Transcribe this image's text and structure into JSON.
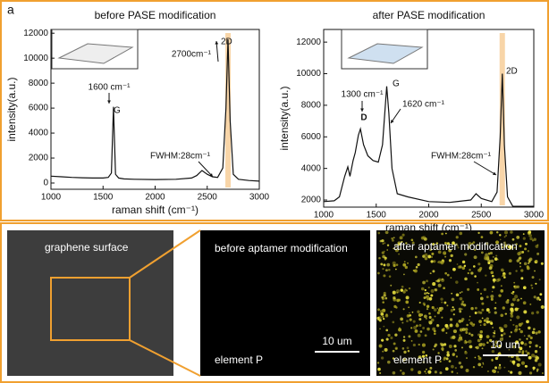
{
  "panel_labels": [
    "a",
    "b"
  ],
  "chart_data": [
    {
      "type": "line",
      "title": "before PASE modification",
      "x_label": "raman shift (cm⁻¹)",
      "y_label": "intensity(a.u.)",
      "x": [
        1000,
        1100,
        1200,
        1300,
        1400,
        1500,
        1550,
        1580,
        1600,
        1620,
        1650,
        1700,
        1800,
        2000,
        2200,
        2350,
        2400,
        2450,
        2500,
        2550,
        2600,
        2650,
        2680,
        2700,
        2720,
        2750,
        2800,
        2900,
        3000
      ],
      "values": [
        550,
        500,
        450,
        420,
        400,
        400,
        450,
        800,
        6100,
        700,
        400,
        330,
        300,
        280,
        300,
        400,
        600,
        1000,
        700,
        500,
        450,
        1200,
        6000,
        11500,
        5000,
        700,
        300,
        200,
        150
      ],
      "color": "#111111",
      "xlim": [
        1000,
        3000
      ],
      "ylim": [
        -500,
        12300
      ],
      "xticks": [
        1000,
        1500,
        2000,
        2500,
        3000
      ],
      "yticks": [
        0,
        2000,
        4000,
        6000,
        8000,
        10000,
        12000
      ],
      "highlight_x": 2700,
      "annotations": [
        "1600 cm⁻¹",
        "G",
        "2700cm⁻¹",
        "2D",
        "FWHM:28cm⁻¹"
      ]
    },
    {
      "type": "line",
      "title": "after PASE modification",
      "x_label": "raman shift (cm⁻¹)",
      "y_label": "intensity(a.u.)",
      "x": [
        1000,
        1100,
        1150,
        1200,
        1230,
        1250,
        1280,
        1300,
        1330,
        1350,
        1380,
        1420,
        1470,
        1520,
        1560,
        1600,
        1620,
        1650,
        1700,
        1800,
        2000,
        2200,
        2400,
        2450,
        2500,
        2600,
        2650,
        2680,
        2700,
        2720,
        2750,
        2800,
        3000
      ],
      "values": [
        1900,
        1950,
        2200,
        3500,
        4100,
        3500,
        4500,
        5000,
        6100,
        6500,
        5500,
        4800,
        4500,
        4400,
        5500,
        9200,
        7500,
        4000,
        2400,
        2200,
        1900,
        1850,
        2000,
        2400,
        2100,
        1900,
        2500,
        6000,
        10000,
        5500,
        2200,
        1600,
        1600
      ],
      "color": "#111111",
      "xlim": [
        1000,
        3000
      ],
      "ylim": [
        1550,
        12800
      ],
      "xticks": [
        1000,
        1500,
        2000,
        2500,
        3000
      ],
      "yticks": [
        2000,
        4000,
        6000,
        8000,
        10000,
        12000
      ],
      "highlight_x": 2700,
      "annotations": [
        "1300 cm⁻¹",
        "D",
        "1620 cm⁻¹",
        "G",
        "2D",
        "FWHM:28cm⁻¹"
      ]
    }
  ],
  "images": [
    {
      "title": "graphene surface"
    },
    {
      "title": "before aptamer modification",
      "element": "element P",
      "scale": "10 um"
    },
    {
      "title": "after aptamer modification",
      "element": "element P",
      "scale": "10 um"
    }
  ]
}
